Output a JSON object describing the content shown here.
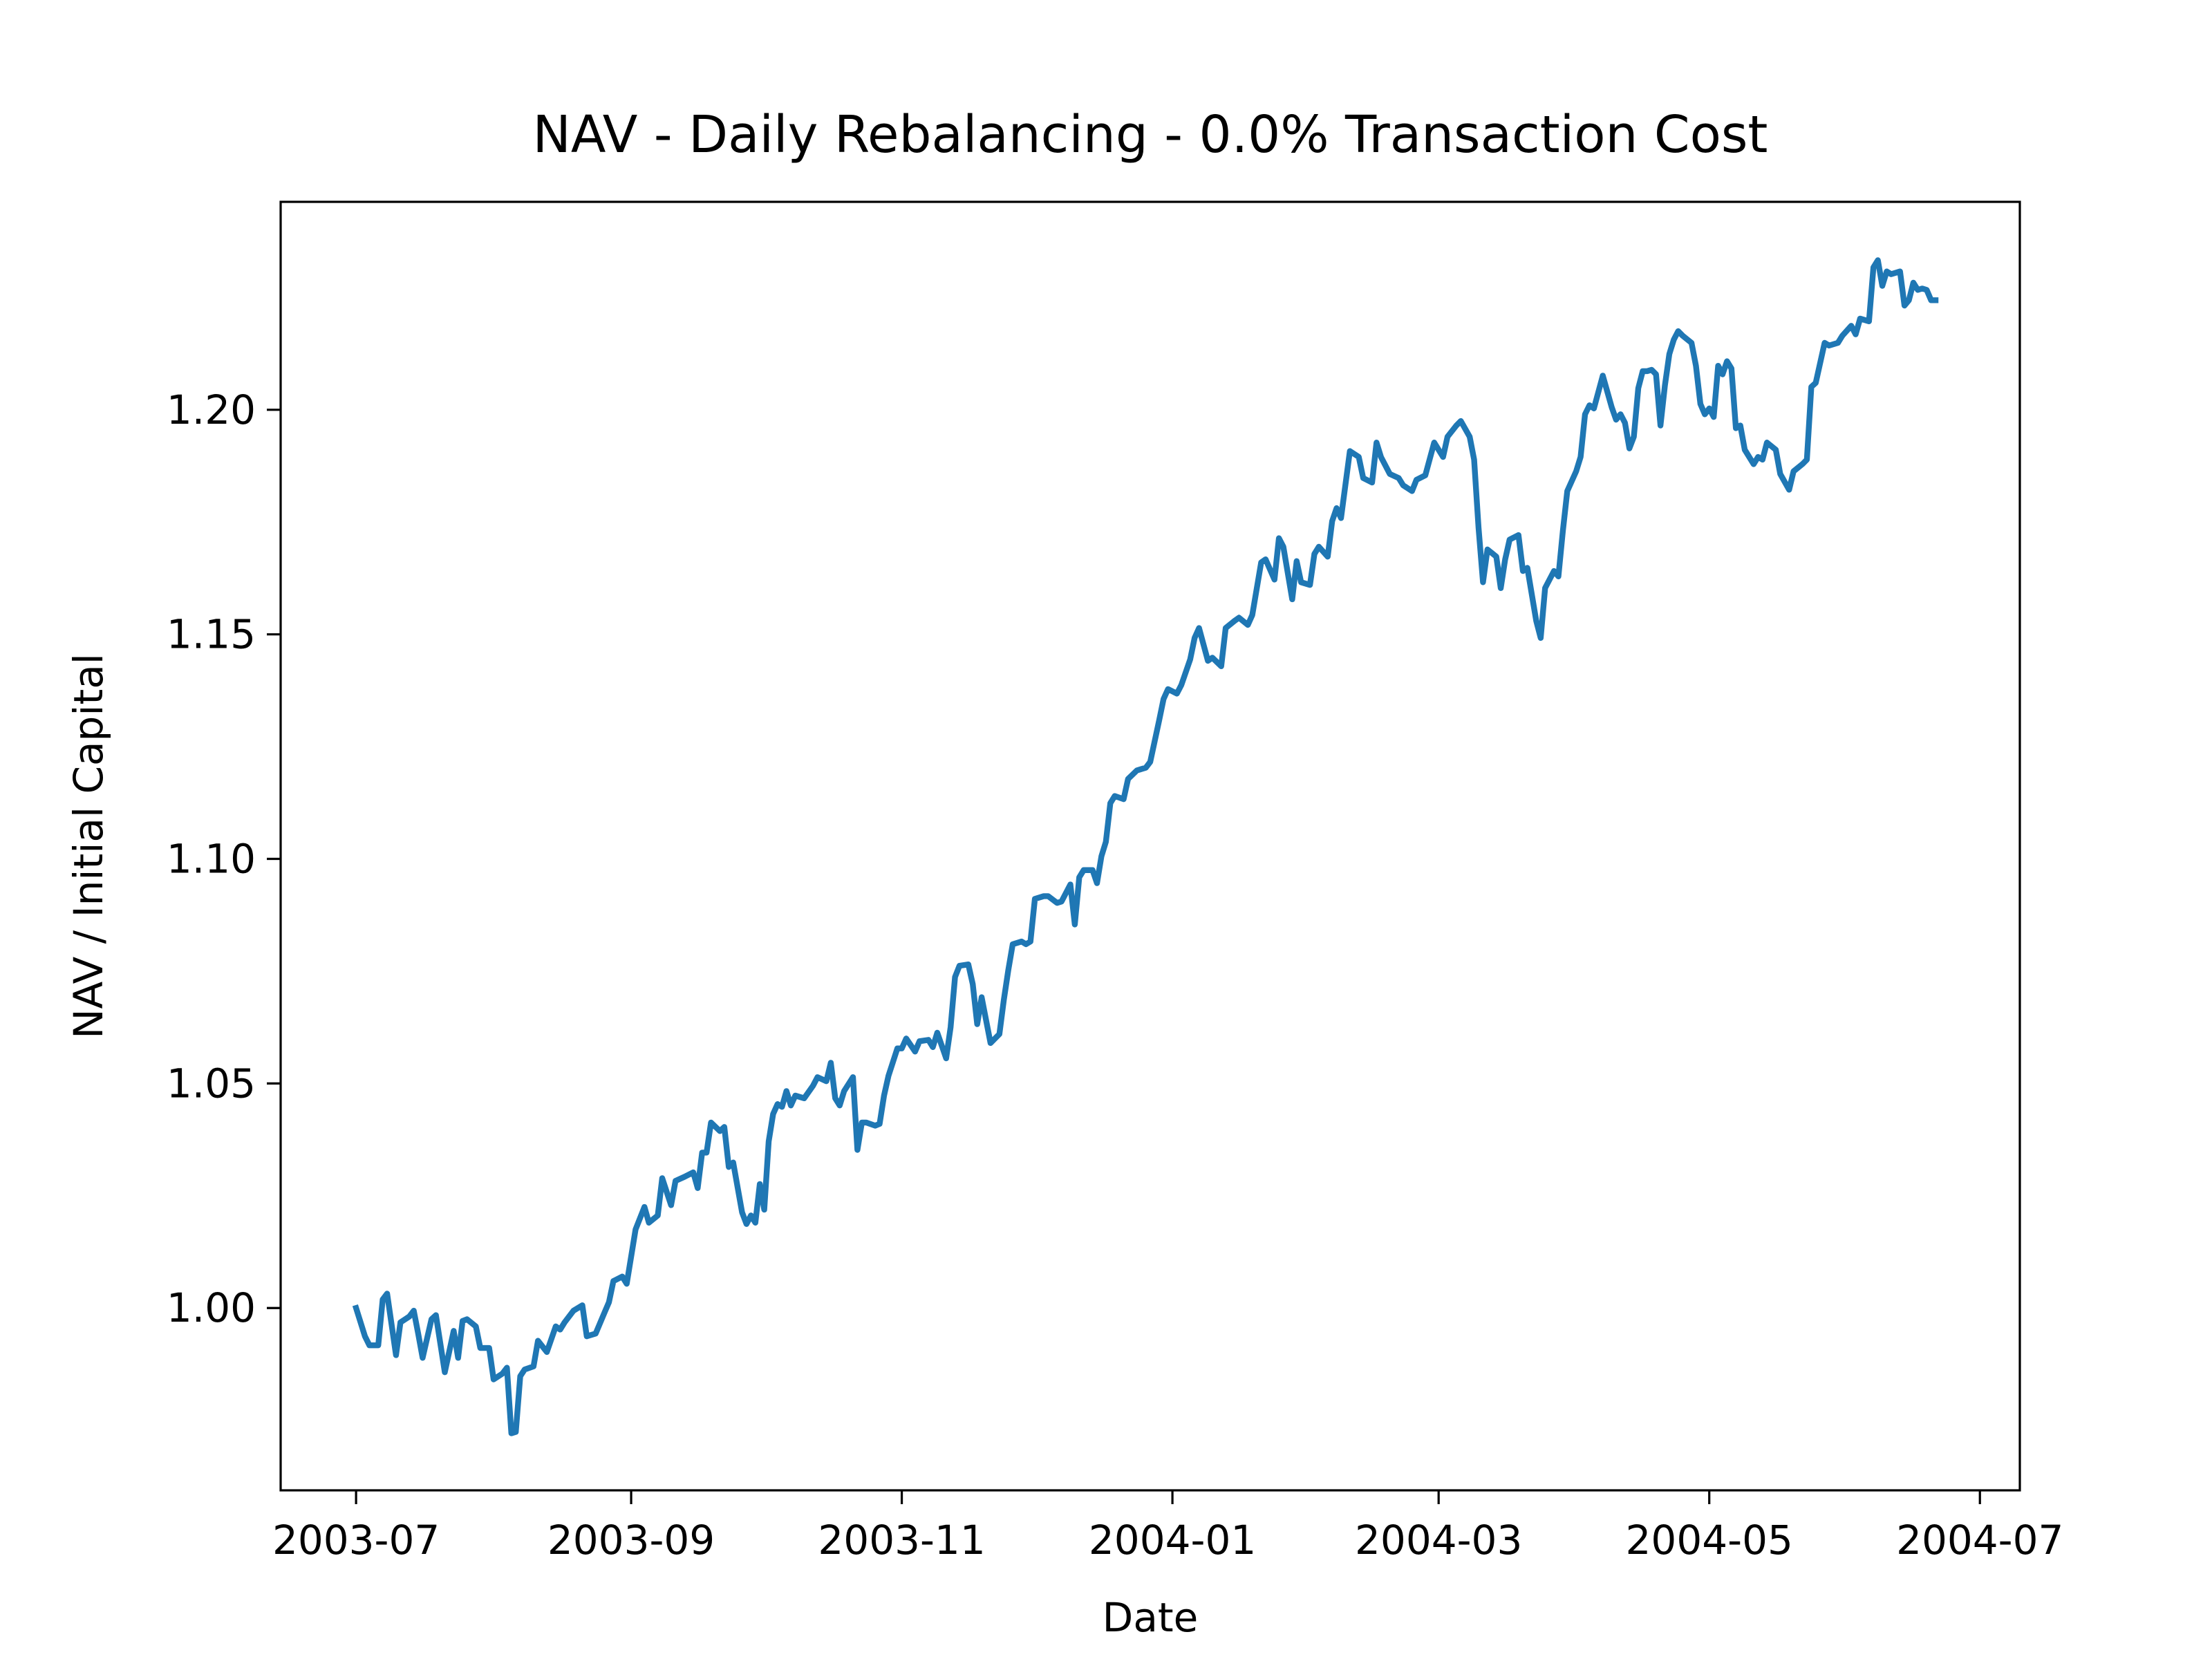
{
  "chart_data": {
    "type": "line",
    "title": "NAV - Daily Rebalancing - 0.0% Transaction Cost",
    "xlabel": "Date",
    "ylabel": "NAV / Initial Capital",
    "xlim": [
      "2003-06-14",
      "2004-07-10"
    ],
    "xticks": [
      "2003-07",
      "2003-09",
      "2003-11",
      "2004-01",
      "2004-03",
      "2004-05",
      "2004-07"
    ],
    "ylim": [
      0.9594,
      1.2463
    ],
    "yticks": [
      {
        "value": 1.0,
        "label": "1.00"
      },
      {
        "value": 1.05,
        "label": "1.05"
      },
      {
        "value": 1.1,
        "label": "1.10"
      },
      {
        "value": 1.15,
        "label": "1.15"
      },
      {
        "value": 1.2,
        "label": "1.20"
      }
    ],
    "grid": false,
    "x": [
      "2003-07-01",
      "2003-07-03",
      "2003-07-04",
      "2003-07-06",
      "2003-07-07",
      "2003-07-08",
      "2003-07-10",
      "2003-07-11",
      "2003-07-13",
      "2003-07-14",
      "2003-07-15",
      "2003-07-16",
      "2003-07-18",
      "2003-07-19",
      "2003-07-21",
      "2003-07-23",
      "2003-07-24",
      "2003-07-25",
      "2003-07-26",
      "2003-07-28",
      "2003-07-29",
      "2003-07-31",
      "2003-08-01",
      "2003-08-03",
      "2003-08-04",
      "2003-08-05",
      "2003-08-06",
      "2003-08-07",
      "2003-08-08",
      "2003-08-10",
      "2003-08-11",
      "2003-08-13",
      "2003-08-15",
      "2003-08-16",
      "2003-08-17",
      "2003-08-19",
      "2003-08-21",
      "2003-08-22",
      "2003-08-24",
      "2003-08-26",
      "2003-08-27",
      "2003-08-28",
      "2003-08-30",
      "2003-08-31",
      "2003-09-02",
      "2003-09-04",
      "2003-09-05",
      "2003-09-07",
      "2003-09-08",
      "2003-09-10",
      "2003-09-11",
      "2003-09-13",
      "2003-09-15",
      "2003-09-16",
      "2003-09-17",
      "2003-09-18",
      "2003-09-19",
      "2003-09-21",
      "2003-09-22",
      "2003-09-23",
      "2003-09-24",
      "2003-09-26",
      "2003-09-27",
      "2003-09-28",
      "2003-09-29",
      "2003-09-30",
      "2003-10-01",
      "2003-10-02",
      "2003-10-03",
      "2003-10-04",
      "2003-10-05",
      "2003-10-06",
      "2003-10-07",
      "2003-10-08",
      "2003-10-10",
      "2003-10-12",
      "2003-10-13",
      "2003-10-15",
      "2003-10-16",
      "2003-10-17",
      "2003-10-18",
      "2003-10-19",
      "2003-10-21",
      "2003-10-22",
      "2003-10-23",
      "2003-10-24",
      "2003-10-26",
      "2003-10-27",
      "2003-10-28",
      "2003-10-29",
      "2003-10-31",
      "2003-11-01",
      "2003-11-02",
      "2003-11-04",
      "2003-11-05",
      "2003-11-07",
      "2003-11-08",
      "2003-11-09",
      "2003-11-11",
      "2003-11-12",
      "2003-11-13",
      "2003-11-14",
      "2003-11-16",
      "2003-11-17",
      "2003-11-18",
      "2003-11-19",
      "2003-11-21",
      "2003-11-23",
      "2003-11-24",
      "2003-11-25",
      "2003-11-26",
      "2003-11-28",
      "2003-11-29",
      "2003-11-30",
      "2003-12-01",
      "2003-12-03",
      "2003-12-04",
      "2003-12-06",
      "2003-12-07",
      "2003-12-09",
      "2003-12-10",
      "2003-12-11",
      "2003-12-12",
      "2003-12-14",
      "2003-12-15",
      "2003-12-16",
      "2003-12-17",
      "2003-12-18",
      "2003-12-19",
      "2003-12-21",
      "2003-12-22",
      "2003-12-24",
      "2003-12-26",
      "2003-12-27",
      "2003-12-29",
      "2003-12-30",
      "2003-12-31",
      "2004-01-02",
      "2004-01-03",
      "2004-01-05",
      "2004-01-06",
      "2004-01-07",
      "2004-01-09",
      "2004-01-10",
      "2004-01-12",
      "2004-01-13",
      "2004-01-15",
      "2004-01-16",
      "2004-01-18",
      "2004-01-19",
      "2004-01-21",
      "2004-01-22",
      "2004-01-24",
      "2004-01-25",
      "2004-01-26",
      "2004-01-28",
      "2004-01-29",
      "2004-01-30",
      "2004-02-01",
      "2004-02-02",
      "2004-02-03",
      "2004-02-05",
      "2004-02-06",
      "2004-02-07",
      "2004-02-08",
      "2004-02-10",
      "2004-02-12",
      "2004-02-13",
      "2004-02-15",
      "2004-02-16",
      "2004-02-17",
      "2004-02-19",
      "2004-02-21",
      "2004-02-22",
      "2004-02-24",
      "2004-02-25",
      "2004-02-27",
      "2004-02-29",
      "2004-03-02",
      "2004-03-03",
      "2004-03-05",
      "2004-03-06",
      "2004-03-08",
      "2004-03-09",
      "2004-03-10",
      "2004-03-11",
      "2004-03-12",
      "2004-03-14",
      "2004-03-15",
      "2004-03-16",
      "2004-03-17",
      "2004-03-19",
      "2004-03-20",
      "2004-03-21",
      "2004-03-23",
      "2004-03-24",
      "2004-03-25",
      "2004-03-27",
      "2004-03-28",
      "2004-03-29",
      "2004-03-30",
      "2004-04-01",
      "2004-04-02",
      "2004-04-03",
      "2004-04-04",
      "2004-04-05",
      "2004-04-07",
      "2004-04-08",
      "2004-04-09",
      "2004-04-10",
      "2004-04-11",
      "2004-04-12",
      "2004-04-13",
      "2004-04-14",
      "2004-04-15",
      "2004-04-16",
      "2004-04-17",
      "2004-04-18",
      "2004-04-19",
      "2004-04-20",
      "2004-04-21",
      "2004-04-22",
      "2004-04-23",
      "2004-04-24",
      "2004-04-25",
      "2004-04-27",
      "2004-04-28",
      "2004-04-29",
      "2004-04-30",
      "2004-05-01",
      "2004-05-02",
      "2004-05-03",
      "2004-05-04",
      "2004-05-05",
      "2004-05-06",
      "2004-05-07",
      "2004-05-08",
      "2004-05-09",
      "2004-05-11",
      "2004-05-12",
      "2004-05-13",
      "2004-05-14",
      "2004-05-16",
      "2004-05-17",
      "2004-05-19",
      "2004-05-20",
      "2004-05-22",
      "2004-05-23",
      "2004-05-24",
      "2004-05-25",
      "2004-05-27",
      "2004-05-28",
      "2004-05-30",
      "2004-05-31",
      "2004-06-02",
      "2004-06-03",
      "2004-06-04",
      "2004-06-06",
      "2004-06-07",
      "2004-06-08",
      "2004-06-09",
      "2004-06-10",
      "2004-06-11",
      "2004-06-13",
      "2004-06-14",
      "2004-06-15",
      "2004-06-16",
      "2004-06-17",
      "2004-06-18",
      "2004-06-19",
      "2004-06-20",
      "2004-06-21"
    ],
    "series": [
      {
        "name": "NAV",
        "color": "#1f77b4",
        "values": [
          1.0,
          0.9937,
          0.9917,
          0.9917,
          1.0019,
          1.0032,
          0.9895,
          0.9968,
          0.9981,
          0.9994,
          0.9943,
          0.9889,
          0.9975,
          0.9984,
          0.9857,
          0.9949,
          0.9889,
          0.9971,
          0.9975,
          0.9959,
          0.9911,
          0.9911,
          0.9841,
          0.9854,
          0.9867,
          0.9721,
          0.9724,
          0.9848,
          0.9863,
          0.987,
          0.9927,
          0.9902,
          0.9959,
          0.9952,
          0.9968,
          0.9994,
          1.0006,
          0.9937,
          0.9943,
          0.999,
          1.0013,
          1.006,
          1.007,
          1.0054,
          1.0175,
          1.0225,
          1.019,
          1.0206,
          1.0289,
          1.0229,
          1.0283,
          1.0292,
          1.0302,
          1.0267,
          1.0346,
          1.0346,
          1.0413,
          1.0394,
          1.0403,
          1.0314,
          1.0324,
          1.0213,
          1.0187,
          1.0206,
          1.019,
          1.0276,
          1.0219,
          1.0371,
          1.0432,
          1.0454,
          1.0448,
          1.0483,
          1.0451,
          1.0473,
          1.0467,
          1.0495,
          1.0514,
          1.0505,
          1.0546,
          1.0467,
          1.0451,
          1.0483,
          1.0514,
          1.0352,
          1.0413,
          1.0413,
          1.0406,
          1.041,
          1.0473,
          1.0517,
          1.0578,
          1.0578,
          1.06,
          1.0571,
          1.0594,
          1.0597,
          1.0581,
          1.0613,
          1.0556,
          1.0625,
          1.0737,
          1.0762,
          1.0765,
          1.0721,
          1.0632,
          1.0692,
          1.059,
          1.061,
          1.0686,
          1.0752,
          1.081,
          1.0816,
          1.081,
          1.0816,
          1.0911,
          1.0917,
          1.0917,
          1.0902,
          1.0905,
          1.0943,
          1.0854,
          1.0959,
          1.0975,
          1.0975,
          1.0946,
          1.1006,
          1.1038,
          1.1124,
          1.114,
          1.1133,
          1.1178,
          1.1197,
          1.1203,
          1.1216,
          1.1308,
          1.1356,
          1.1378,
          1.1368,
          1.1387,
          1.1444,
          1.1492,
          1.1514,
          1.1441,
          1.1448,
          1.1429,
          1.1514,
          1.153,
          1.1537,
          1.1521,
          1.1543,
          1.166,
          1.1667,
          1.1622,
          1.1714,
          1.1695,
          1.1578,
          1.1663,
          1.1616,
          1.161,
          1.1679,
          1.1695,
          1.1673,
          1.1752,
          1.1781,
          1.1759,
          1.1908,
          1.1895,
          1.1848,
          1.1838,
          1.1927,
          1.1895,
          1.1857,
          1.1848,
          1.1832,
          1.1819,
          1.1844,
          1.1854,
          1.1927,
          1.1895,
          1.194,
          1.1965,
          1.1975,
          1.194,
          1.1889,
          1.1737,
          1.1616,
          1.1689,
          1.1673,
          1.1603,
          1.1667,
          1.1711,
          1.1721,
          1.1641,
          1.1648,
          1.153,
          1.1492,
          1.1603,
          1.1641,
          1.1629,
          1.173,
          1.1819,
          1.1863,
          1.1895,
          1.199,
          1.201,
          1.2003,
          1.2076,
          1.2041,
          1.2006,
          1.1978,
          1.199,
          1.1971,
          1.1914,
          1.194,
          1.2048,
          1.2086,
          1.2086,
          1.2089,
          1.2079,
          1.1965,
          1.2054,
          1.2124,
          1.2156,
          1.2175,
          1.2165,
          1.2149,
          1.2098,
          1.2013,
          1.199,
          1.2003,
          1.1984,
          1.2098,
          1.2079,
          1.2108,
          1.2092,
          1.1959,
          1.1965,
          1.1911,
          1.1879,
          1.1895,
          1.1889,
          1.1927,
          1.1911,
          1.1857,
          1.1822,
          1.1863,
          1.1879,
          1.1889,
          1.2051,
          1.206,
          1.2149,
          1.2143,
          1.2149,
          1.2165,
          1.2187,
          1.2168,
          1.2203,
          1.2197,
          1.2317,
          1.2333,
          1.2276,
          1.2308,
          1.2302,
          1.2308,
          1.2232,
          1.2244,
          1.2283,
          1.2267,
          1.227,
          1.2267,
          1.2244,
          1.2244
        ]
      }
    ]
  }
}
